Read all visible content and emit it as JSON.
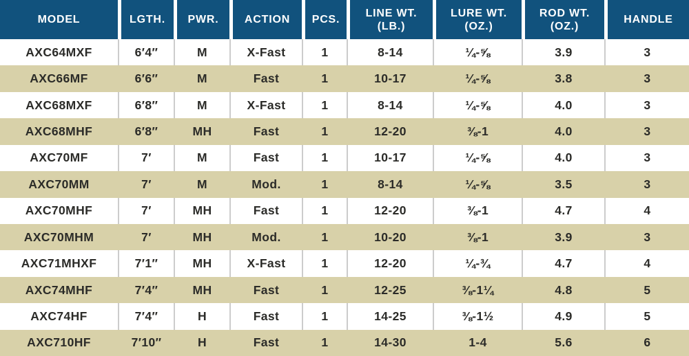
{
  "chart_data": {
    "type": "table",
    "columns": [
      {
        "key": "model",
        "label": "MODEL"
      },
      {
        "key": "lgth",
        "label": "LGTH."
      },
      {
        "key": "pwr",
        "label": "PWR."
      },
      {
        "key": "action",
        "label": "ACTION"
      },
      {
        "key": "pcs",
        "label": "PCS."
      },
      {
        "key": "line-wt-lb",
        "label": "LINE WT.",
        "label2": "(LB.)"
      },
      {
        "key": "lure-wt-oz",
        "label": "LURE WT.",
        "label2": "(OZ.)"
      },
      {
        "key": "rod-wt-oz",
        "label": "ROD WT.",
        "label2": "(OZ.)"
      },
      {
        "key": "handle",
        "label": "HANDLE"
      }
    ],
    "rows": [
      [
        "AXC64MXF",
        "6′4″",
        "M",
        "X-Fast",
        "1",
        "8-14",
        "¼-⅝",
        "3.9",
        "3"
      ],
      [
        "AXC66MF",
        "6′6″",
        "M",
        "Fast",
        "1",
        "10-17",
        "¼-⅝",
        "3.8",
        "3"
      ],
      [
        "AXC68MXF",
        "6′8″",
        "M",
        "X-Fast",
        "1",
        "8-14",
        "¼-⅝",
        "4.0",
        "3"
      ],
      [
        "AXC68MHF",
        "6′8″",
        "MH",
        "Fast",
        "1",
        "12-20",
        "⅜-1",
        "4.0",
        "3"
      ],
      [
        "AXC70MF",
        "7′",
        "M",
        "Fast",
        "1",
        "10-17",
        "¼-⅝",
        "4.0",
        "3"
      ],
      [
        "AXC70MM",
        "7′",
        "M",
        "Mod.",
        "1",
        "8-14",
        "¼-⅝",
        "3.5",
        "3"
      ],
      [
        "AXC70MHF",
        "7′",
        "MH",
        "Fast",
        "1",
        "12-20",
        "⅜-1",
        "4.7",
        "4"
      ],
      [
        "AXC70MHM",
        "7′",
        "MH",
        "Mod.",
        "1",
        "10-20",
        "⅜-1",
        "3.9",
        "3"
      ],
      [
        "AXC71MHXF",
        "7′1″",
        "MH",
        "X-Fast",
        "1",
        "12-20",
        "¼-¾",
        "4.7",
        "4"
      ],
      [
        "AXC74MHF",
        "7′4″",
        "MH",
        "Fast",
        "1",
        "12-25",
        "⅜-1¼",
        "4.8",
        "5"
      ],
      [
        "AXC74HF",
        "7′4″",
        "H",
        "Fast",
        "1",
        "14-25",
        "⅜-1½",
        "4.9",
        "5"
      ],
      [
        "AXC710HF",
        "7′10″",
        "H",
        "Fast",
        "1",
        "14-30",
        "1-4",
        "5.6",
        "6"
      ]
    ]
  },
  "colors": {
    "header_bg": "#11527D",
    "header_text": "#ffffff",
    "separator_header": "#ffffff",
    "row_bg": "#ffffff",
    "row_alt_bg": "#D8D1A9",
    "separator_body": "#cccccc",
    "body_text": "#2B2B28"
  }
}
